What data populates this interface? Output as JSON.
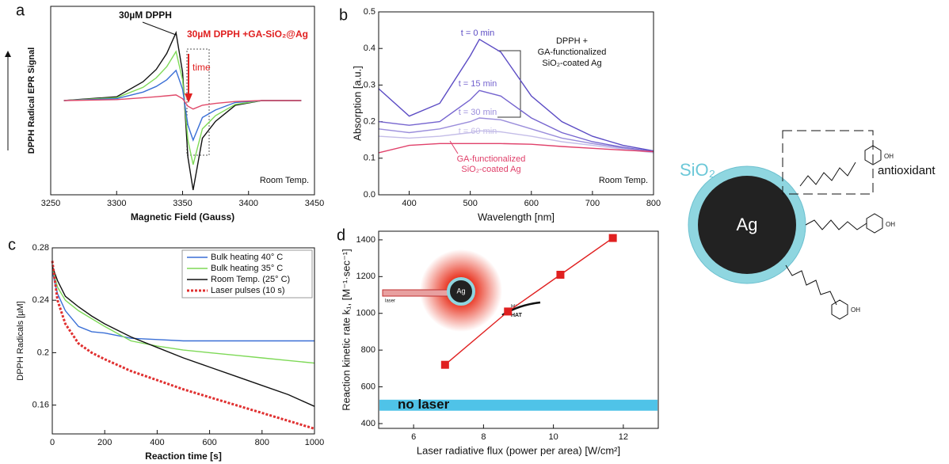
{
  "chart_data": [
    {
      "type": "line",
      "panel_label": "a",
      "x_label": "Magnetic Field (Gauss)",
      "y_label": "DPPH Radical EPR Signal",
      "xlim": [
        3250,
        3450
      ],
      "xticks": [
        3250,
        3300,
        3350,
        3400,
        3450
      ],
      "ylim": [
        -1,
        1
      ],
      "x": [
        3260,
        3300,
        3320,
        3330,
        3338,
        3345,
        3350,
        3354,
        3358,
        3365,
        3375,
        3390,
        3410,
        3440
      ],
      "series": [
        {
          "color": "#111111",
          "values": [
            0,
            0.04,
            0.2,
            0.33,
            0.5,
            0.72,
            0.3,
            -0.6,
            -0.95,
            -0.4,
            -0.22,
            -0.05,
            0,
            0
          ]
        },
        {
          "color": "#7ed957",
          "values": [
            0,
            0.03,
            0.14,
            0.24,
            0.36,
            0.52,
            0.22,
            -0.42,
            -0.68,
            -0.3,
            -0.16,
            -0.04,
            0,
            0
          ]
        },
        {
          "color": "#3a6fd6",
          "values": [
            0,
            0.02,
            0.09,
            0.15,
            0.22,
            0.32,
            0.12,
            -0.26,
            -0.42,
            -0.18,
            -0.1,
            -0.02,
            0,
            0
          ]
        },
        {
          "color": "#e04a6a",
          "values": [
            0,
            0.01,
            0.03,
            0.04,
            0.05,
            0.06,
            0.02,
            -0.06,
            -0.09,
            -0.05,
            -0.03,
            -0.01,
            0,
            0
          ]
        }
      ],
      "annotations": {
        "reference": "30µM DPPH",
        "sample": "30µM DPPH +GA-SiO₂@Ag",
        "time": "time",
        "condition": "Room Temp."
      }
    },
    {
      "type": "line",
      "panel_label": "b",
      "x_label": "Wavelength [nm]",
      "y_label": "Absorption [a.u.]",
      "xlim": [
        350,
        800
      ],
      "xticks": [
        400,
        500,
        600,
        700,
        800
      ],
      "ylim": [
        0,
        0.5
      ],
      "yticks": [
        {
          "value": 0,
          "label": "0.0"
        },
        0.1,
        0.2,
        0.3,
        0.4,
        0.5
      ],
      "x": [
        350,
        400,
        450,
        500,
        515,
        550,
        600,
        650,
        700,
        750,
        800
      ],
      "series": [
        {
          "name": "t = 0 min",
          "color": "#5b4bc4",
          "values": [
            0.29,
            0.215,
            0.25,
            0.38,
            0.425,
            0.39,
            0.27,
            0.2,
            0.16,
            0.135,
            0.12
          ]
        },
        {
          "name": "t = 15 min",
          "color": "#7564cf",
          "values": [
            0.2,
            0.19,
            0.2,
            0.26,
            0.285,
            0.27,
            0.21,
            0.17,
            0.145,
            0.13,
            0.118
          ]
        },
        {
          "name": "t = 30 min",
          "color": "#9a8ddb",
          "values": [
            0.18,
            0.17,
            0.18,
            0.2,
            0.21,
            0.205,
            0.18,
            0.155,
            0.14,
            0.128,
            0.116
          ]
        },
        {
          "name": "t = 60 min",
          "color": "#c4bde8",
          "values": [
            0.16,
            0.155,
            0.16,
            0.17,
            0.175,
            0.172,
            0.16,
            0.145,
            0.135,
            0.125,
            0.115
          ]
        },
        {
          "color": "#e0406a",
          "values": [
            0.115,
            0.135,
            0.14,
            0.14,
            0.14,
            0.14,
            0.138,
            0.132,
            0.127,
            0.122,
            0.118
          ]
        }
      ],
      "annotations": {
        "sample_lines": [
          "DPPH +",
          "GA-functionalized",
          "SiO₂-coated Ag"
        ],
        "control_lines": [
          "GA-functionalized",
          "SiO₂-coated Ag"
        ],
        "condition": "Room Temp."
      }
    },
    {
      "type": "line",
      "panel_label": "c",
      "x_label": "Reaction time [s]",
      "y_label": "DPPH Radicals [µM]",
      "xlim": [
        0,
        1000
      ],
      "xticks": [
        0,
        200,
        400,
        600,
        800,
        1000
      ],
      "ylim": [
        0.138,
        0.28
      ],
      "yticks": [
        0.16,
        0.2,
        0.24,
        0.28
      ],
      "x": [
        0,
        20,
        50,
        100,
        150,
        200,
        300,
        400,
        500,
        600,
        700,
        800,
        900,
        1000
      ],
      "series": [
        {
          "name": "Bulk heating 40° C",
          "color": "#3a6fd6",
          "values": [
            0.262,
            0.245,
            0.232,
            0.22,
            0.216,
            0.215,
            0.211,
            0.21,
            0.209,
            0.209,
            0.209,
            0.209,
            0.209,
            0.209
          ]
        },
        {
          "name": "Bulk heating 35° C",
          "color": "#7ed957",
          "values": [
            0.265,
            0.25,
            0.24,
            0.232,
            0.226,
            0.22,
            0.209,
            0.205,
            0.202,
            0.2,
            0.198,
            0.196,
            0.194,
            0.192
          ]
        },
        {
          "name": "Room Temp. (25° C)",
          "color": "#111111",
          "values": [
            0.266,
            0.255,
            0.243,
            0.235,
            0.228,
            0.222,
            0.212,
            0.204,
            0.196,
            0.189,
            0.182,
            0.175,
            0.168,
            0.159
          ]
        },
        {
          "name": "Laser pulses (10 s)",
          "color": "#e03030",
          "dashed": true,
          "values": [
            0.27,
            0.24,
            0.222,
            0.207,
            0.2,
            0.195,
            0.186,
            0.179,
            0.172,
            0.166,
            0.16,
            0.154,
            0.148,
            0.142
          ]
        }
      ]
    },
    {
      "type": "scatter",
      "panel_label": "d",
      "x_label": "Laser radiative flux (power per area) [W/cm²]",
      "y_label": "Reaction kinetic rate k₁, [M⁻¹·sec⁻¹]",
      "xlim": [
        5,
        13
      ],
      "xticks": [
        6,
        8,
        10,
        12
      ],
      "ylim": [
        374,
        1447
      ],
      "yticks": [
        400,
        600,
        800,
        1000,
        1200,
        1400
      ],
      "x": [
        6.9,
        8.7,
        10.2,
        11.7
      ],
      "color": "#e02020",
      "series": [
        {
          "color": "#e02020",
          "values": [
            720,
            1010,
            1210,
            1410
          ]
        }
      ],
      "band": [
        470,
        530
      ],
      "band_color": "#4fc3e8",
      "band_label": "no laser",
      "inset": {
        "particle": "Ag",
        "source": "laser",
        "proton": "H⁺",
        "transfer": "HAT"
      }
    }
  ],
  "diagram": {
    "core": "Ag",
    "shell": "SiO₂",
    "group": "antioxidant",
    "atom": "OH"
  }
}
